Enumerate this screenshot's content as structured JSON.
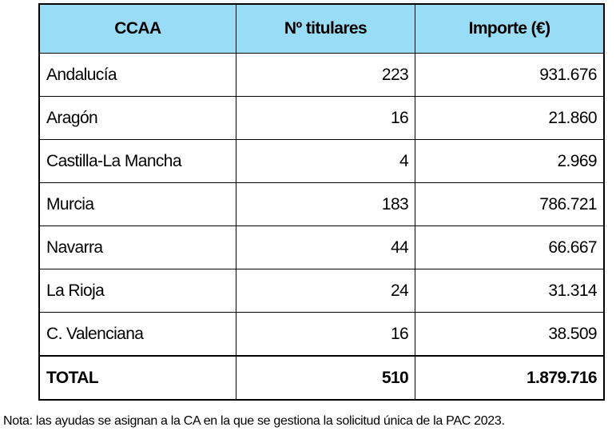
{
  "table": {
    "header": [
      "CCAA",
      "Nº titulares",
      "Importe (€)"
    ],
    "rows": [
      [
        "Andalucía",
        "223",
        "931.676"
      ],
      [
        "Aragón",
        "16",
        "21.860"
      ],
      [
        "Castilla-La Mancha",
        "4",
        "2.969"
      ],
      [
        "Murcia",
        "183",
        "786.721"
      ],
      [
        "Navarra",
        "44",
        "66.667"
      ],
      [
        "La Rioja",
        "24",
        "31.314"
      ],
      [
        "C. Valenciana",
        "16",
        "38.509"
      ]
    ],
    "total": [
      "TOTAL",
      "510",
      "1.879.716"
    ]
  },
  "note": "Nota: las ayudas se asignan a la CA en la que se gestiona la solicitud única de la PAC 2023."
}
